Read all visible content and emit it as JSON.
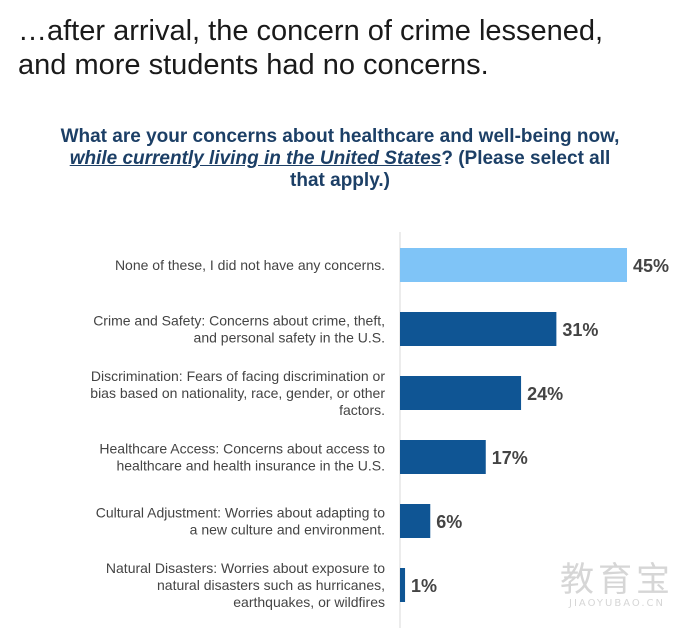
{
  "headline": {
    "line1": "…after arrival, the concern of crime lessened,",
    "line2": "and more students had no concerns."
  },
  "question": {
    "part1": "What are your concerns about healthcare and well-being now, ",
    "emphasis": "while currently living in the United States",
    "part2": "? (Please select all that apply.)"
  },
  "watermark": {
    "main": "教育宝",
    "sub": "JIAOYUBAO.CN"
  },
  "chart_data": {
    "type": "bar",
    "orientation": "horizontal",
    "categories": [
      [
        "None of these, I did not have any concerns."
      ],
      [
        "Crime and Safety: Concerns about crime, theft,",
        "and personal safety in the U.S."
      ],
      [
        "Discrimination: Fears of facing discrimination or",
        "bias based on nationality, race, gender, or other",
        "factors."
      ],
      [
        "Healthcare Access: Concerns about access to",
        "healthcare and health insurance in the U.S."
      ],
      [
        "Cultural Adjustment: Worries about adapting to",
        "a new culture and environment."
      ],
      [
        "Natural Disasters: Worries about exposure to",
        "natural disasters such as hurricanes,",
        "earthquakes, or wildfires"
      ]
    ],
    "values": [
      45,
      31,
      24,
      17,
      6,
      1
    ],
    "value_labels": [
      "45%",
      "31%",
      "24%",
      "17%",
      "6%",
      "1%"
    ],
    "bar_colors": [
      "#7fc4f7",
      "#0f5594",
      "#0f5594",
      "#0f5594",
      "#0f5594",
      "#0f5594"
    ],
    "axis_color": "#d9d9d9",
    "xlim": [
      0,
      45
    ],
    "grid": false,
    "legend": "none"
  }
}
